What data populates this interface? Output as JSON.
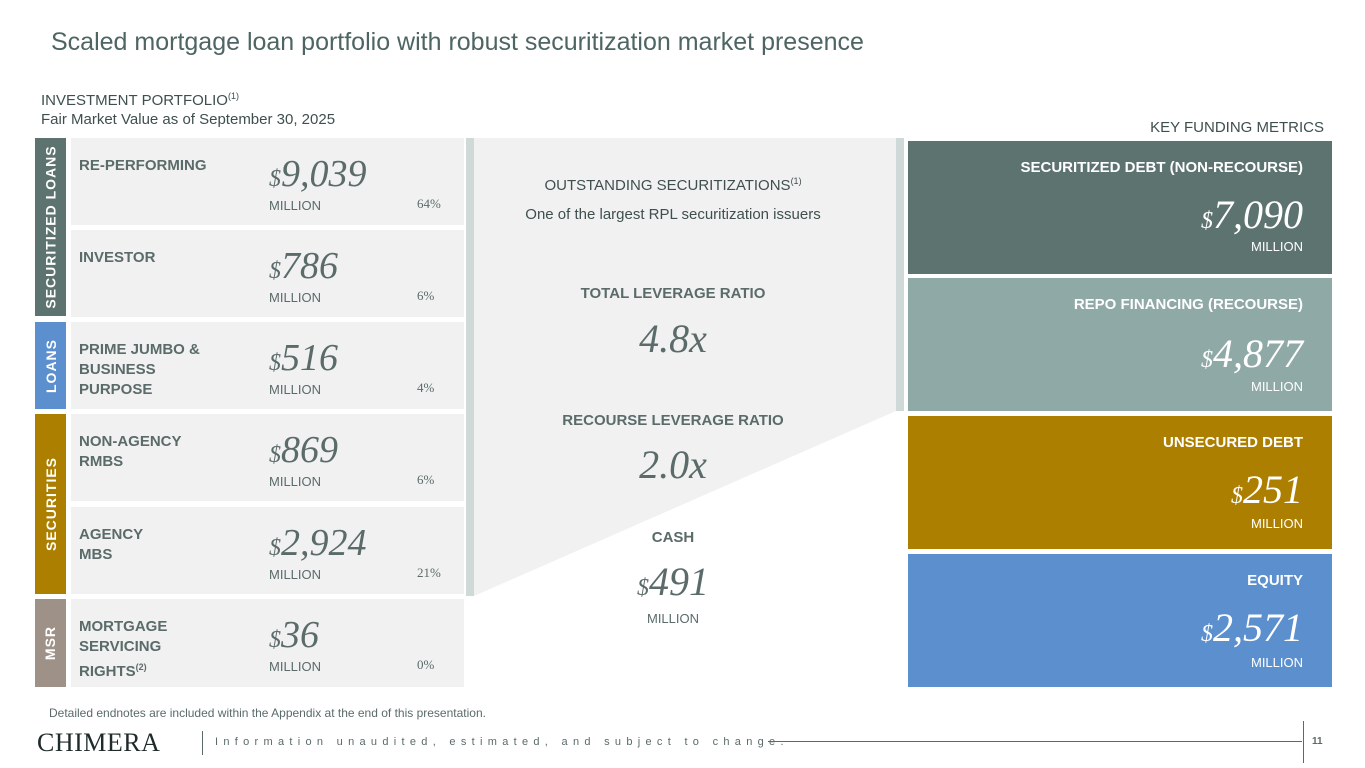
{
  "title": "Scaled mortgage loan portfolio with robust securitization market presence",
  "investment": {
    "title": "INVESTMENT PORTFOLIO",
    "title_note": "(1)",
    "subtitle": "Fair Market Value as of September 30, 2025"
  },
  "key_title": "KEY FUNDING METRICS",
  "categories": {
    "securitized_loans": "SECURITIZED LOANS",
    "loans": "LOANS",
    "securities": "SECURITIES",
    "msr": "MSR"
  },
  "colors": {
    "securitized_loans": "#5d736f",
    "loans": "#5b8fce",
    "securities": "#ad7f00",
    "msr": "#9e9188",
    "repo": "#8fa9a6",
    "equity": "#5b8fce"
  },
  "rows": [
    {
      "label": "RE-PERFORMING",
      "currency": "$",
      "value": "9,039",
      "unit": "MILLION",
      "pct": "64%"
    },
    {
      "label": "INVESTOR",
      "currency": "$",
      "value": "786",
      "unit": "MILLION",
      "pct": "6%"
    },
    {
      "label": "PRIME JUMBO & BUSINESS PURPOSE",
      "currency": "$",
      "value": "516",
      "unit": "MILLION",
      "pct": "4%"
    },
    {
      "label": "NON-AGENCY RMBS",
      "currency": "$",
      "value": "869",
      "unit": "MILLION",
      "pct": "6%"
    },
    {
      "label": "AGENCY MBS",
      "currency": "$",
      "value": "2,924",
      "unit": "MILLION",
      "pct": "21%"
    },
    {
      "label": "MORTGAGE SERVICING RIGHTS",
      "label_note": "(2)",
      "currency": "$",
      "value": "36",
      "unit": "MILLION",
      "pct": "0%"
    }
  ],
  "middle": {
    "securitizations_head": "OUTSTANDING SECURITIZATIONS",
    "securitizations_note": "(1)",
    "securitizations_sub": "One of the largest RPL securitization issuers",
    "total_leverage_head": "TOTAL LEVERAGE RATIO",
    "total_leverage_value": "4.8x",
    "recourse_leverage_head": "RECOURSE LEVERAGE RATIO",
    "recourse_leverage_value": "2.0x",
    "cash_head": "CASH",
    "cash_currency": "$",
    "cash_value": "491",
    "cash_unit": "MILLION"
  },
  "funding": [
    {
      "label": "SECURITIZED DEBT (NON-RECOURSE)",
      "currency": "$",
      "value": "7,090",
      "unit": "MILLION"
    },
    {
      "label": "REPO FINANCING (RECOURSE)",
      "currency": "$",
      "value": "4,877",
      "unit": "MILLION"
    },
    {
      "label": "UNSECURED DEBT",
      "currency": "$",
      "value": "251",
      "unit": "MILLION"
    },
    {
      "label": "EQUITY",
      "currency": "$",
      "value": "2,571",
      "unit": "MILLION"
    }
  ],
  "footer": {
    "footnote": "Detailed endnotes are included within the Appendix at the end of this presentation.",
    "logo": "CHIMERA",
    "disclaimer": "Information unaudited, estimated, and subject to change.",
    "page": "11"
  }
}
